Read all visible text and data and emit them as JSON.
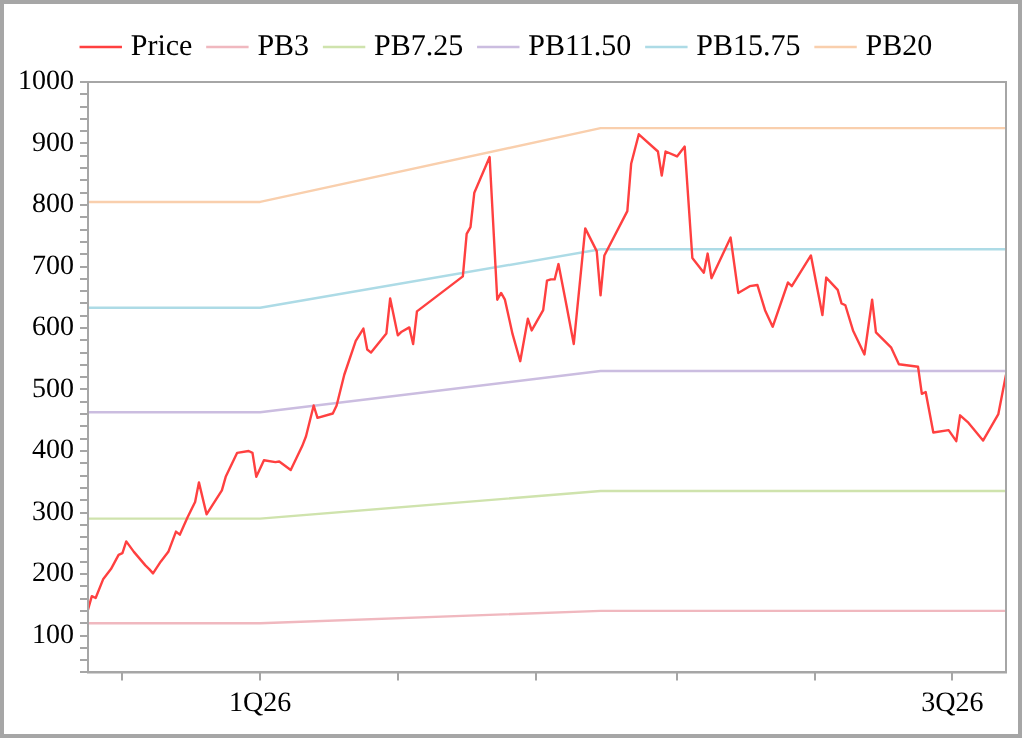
{
  "chart_data": {
    "type": "line",
    "xlim": [
      "2025-11-17",
      "2026-07-15"
    ],
    "xticks": [
      {
        "value": "2025-11-26",
        "label": null
      },
      {
        "value": "2026-01-01",
        "label": "1Q26"
      },
      {
        "value": "2026-02-06",
        "label": null
      },
      {
        "value": "2026-03-14",
        "label": null
      },
      {
        "value": "2026-04-20",
        "label": null
      },
      {
        "value": "2026-05-26",
        "label": null
      },
      {
        "value": "2026-07-01",
        "label": "3Q26"
      }
    ],
    "ylim": [
      40,
      1000
    ],
    "yticks": [
      {
        "value": 40,
        "label": null
      },
      {
        "value": 60,
        "label": null
      },
      {
        "value": 80,
        "label": null
      },
      100,
      {
        "value": 120,
        "label": null
      },
      {
        "value": 140,
        "label": null
      },
      {
        "value": 160,
        "label": null
      },
      {
        "value": 180,
        "label": null
      },
      200,
      {
        "value": 220,
        "label": null
      },
      {
        "value": 240,
        "label": null
      },
      {
        "value": 260,
        "label": null
      },
      {
        "value": 280,
        "label": null
      },
      300,
      {
        "value": 320,
        "label": null
      },
      {
        "value": 340,
        "label": null
      },
      {
        "value": 360,
        "label": null
      },
      {
        "value": 380,
        "label": null
      },
      400,
      {
        "value": 420,
        "label": null
      },
      {
        "value": 440,
        "label": null
      },
      {
        "value": 460,
        "label": null
      },
      {
        "value": 480,
        "label": null
      },
      500,
      {
        "value": 520,
        "label": null
      },
      {
        "value": 540,
        "label": null
      },
      {
        "value": 560,
        "label": null
      },
      {
        "value": 580,
        "label": null
      },
      600,
      {
        "value": 620,
        "label": null
      },
      {
        "value": 640,
        "label": null
      },
      {
        "value": 660,
        "label": null
      },
      {
        "value": 680,
        "label": null
      },
      700,
      {
        "value": 720,
        "label": null
      },
      {
        "value": 740,
        "label": null
      },
      {
        "value": 760,
        "label": null
      },
      {
        "value": 780,
        "label": null
      },
      800,
      {
        "value": 820,
        "label": null
      },
      {
        "value": 840,
        "label": null
      },
      {
        "value": 860,
        "label": null
      },
      {
        "value": 880,
        "label": null
      },
      900,
      {
        "value": 920,
        "label": null
      },
      {
        "value": 940,
        "label": null
      },
      {
        "value": 960,
        "label": null
      },
      {
        "value": 980,
        "label": null
      },
      1000
    ],
    "grid": false,
    "legend": "top",
    "marker": "none",
    "line_style": "solid",
    "series": [
      {
        "name": "Price",
        "color": "#ff4040",
        "x": [
          "2025-11-17",
          "2025-11-18",
          "2025-11-19",
          "2025-11-21",
          "2025-11-23",
          "2025-11-25",
          "2025-11-26",
          "2025-11-27",
          "2025-11-29",
          "2025-12-02",
          "2025-12-03",
          "2025-12-04",
          "2025-12-06",
          "2025-12-08",
          "2025-12-10",
          "2025-12-11",
          "2025-12-13",
          "2025-12-15",
          "2025-12-16",
          "2025-12-18",
          "2025-12-22",
          "2025-12-23",
          "2025-12-26",
          "2025-12-29",
          "2025-12-30",
          "2025-12-31",
          "2026-01-02",
          "2026-01-05",
          "2026-01-06",
          "2026-01-09",
          "2026-01-12",
          "2026-01-13",
          "2026-01-15",
          "2026-01-16",
          "2026-01-20",
          "2026-01-21",
          "2026-01-23",
          "2026-01-26",
          "2026-01-28",
          "2026-01-29",
          "2026-01-30",
          "2026-02-03",
          "2026-02-04",
          "2026-02-06",
          "2026-02-07",
          "2026-02-09",
          "2026-02-10",
          "2026-02-11",
          "2026-02-23",
          "2026-02-24",
          "2026-02-25",
          "2026-02-26",
          "2026-03-02",
          "2026-03-04",
          "2026-03-05",
          "2026-03-06",
          "2026-03-08",
          "2026-03-10",
          "2026-03-12",
          "2026-03-13",
          "2026-03-16",
          "2026-03-17",
          "2026-03-18",
          "2026-03-19",
          "2026-03-20",
          "2026-03-22",
          "2026-03-24",
          "2026-03-27",
          "2026-03-30",
          "2026-03-31",
          "2026-04-01",
          "2026-04-07",
          "2026-04-08",
          "2026-04-10",
          "2026-04-15",
          "2026-04-16",
          "2026-04-17",
          "2026-04-20",
          "2026-04-22",
          "2026-04-24",
          "2026-04-27",
          "2026-04-28",
          "2026-04-29",
          "2026-05-04",
          "2026-05-06",
          "2026-05-09",
          "2026-05-11",
          "2026-05-13",
          "2026-05-15",
          "2026-05-19",
          "2026-05-20",
          "2026-05-25",
          "2026-05-28",
          "2026-05-29",
          "2026-06-01",
          "2026-06-02",
          "2026-06-03",
          "2026-06-05",
          "2026-06-08",
          "2026-06-10",
          "2026-06-11",
          "2026-06-15",
          "2026-06-17",
          "2026-06-22",
          "2026-06-23",
          "2026-06-24",
          "2026-06-26",
          "2026-06-30",
          "2026-07-02",
          "2026-07-03",
          "2026-07-05",
          "2026-07-09",
          "2026-07-13",
          "2026-07-15"
        ],
        "values": [
          142,
          164,
          161,
          192,
          208,
          231,
          234,
          253,
          236,
          214,
          208,
          201,
          220,
          236,
          269,
          264,
          292,
          317,
          349,
          297,
          336,
          358,
          397,
          400,
          397,
          358,
          385,
          382,
          383,
          369,
          408,
          424,
          474,
          454,
          461,
          474,
          524,
          579,
          599,
          565,
          560,
          591,
          648,
          588,
          594,
          601,
          574,
          627,
          684,
          753,
          764,
          820,
          878,
          646,
          657,
          646,
          590,
          546,
          615,
          596,
          629,
          677,
          679,
          679,
          704,
          640,
          574,
          762,
          725,
          653,
          718,
          790,
          867,
          915,
          887,
          848,
          887,
          879,
          895,
          714,
          690,
          721,
          681,
          747,
          657,
          668,
          670,
          629,
          602,
          674,
          668,
          718,
          621,
          682,
          662,
          640,
          637,
          596,
          557,
          646,
          593,
          568,
          541,
          537,
          493,
          496,
          430,
          434,
          416,
          458,
          447,
          417,
          460,
          524
        ]
      },
      {
        "name": "PB3",
        "color": "#f0b8bf",
        "x": [
          "2025-11-17",
          "2026-01-01",
          "2026-03-31",
          "2026-07-15"
        ],
        "values": [
          120,
          120,
          140,
          140
        ]
      },
      {
        "name": "PB7.25",
        "color": "#cfe3ad",
        "x": [
          "2025-11-17",
          "2026-01-01",
          "2026-03-31",
          "2026-07-15"
        ],
        "values": [
          290,
          290,
          335,
          335
        ]
      },
      {
        "name": "PB11.50",
        "color": "#cbbde0",
        "x": [
          "2025-11-17",
          "2026-01-01",
          "2026-03-31",
          "2026-07-15"
        ],
        "values": [
          463,
          463,
          530,
          530
        ]
      },
      {
        "name": "PB15.75",
        "color": "#addbe6",
        "x": [
          "2025-11-17",
          "2026-01-01",
          "2026-03-31",
          "2026-07-15"
        ],
        "values": [
          633,
          633,
          728,
          728
        ]
      },
      {
        "name": "PB20",
        "color": "#f9cfad",
        "x": [
          "2025-11-17",
          "2026-01-01",
          "2026-03-31",
          "2026-07-15"
        ],
        "values": [
          805,
          805,
          925,
          925
        ]
      }
    ]
  }
}
